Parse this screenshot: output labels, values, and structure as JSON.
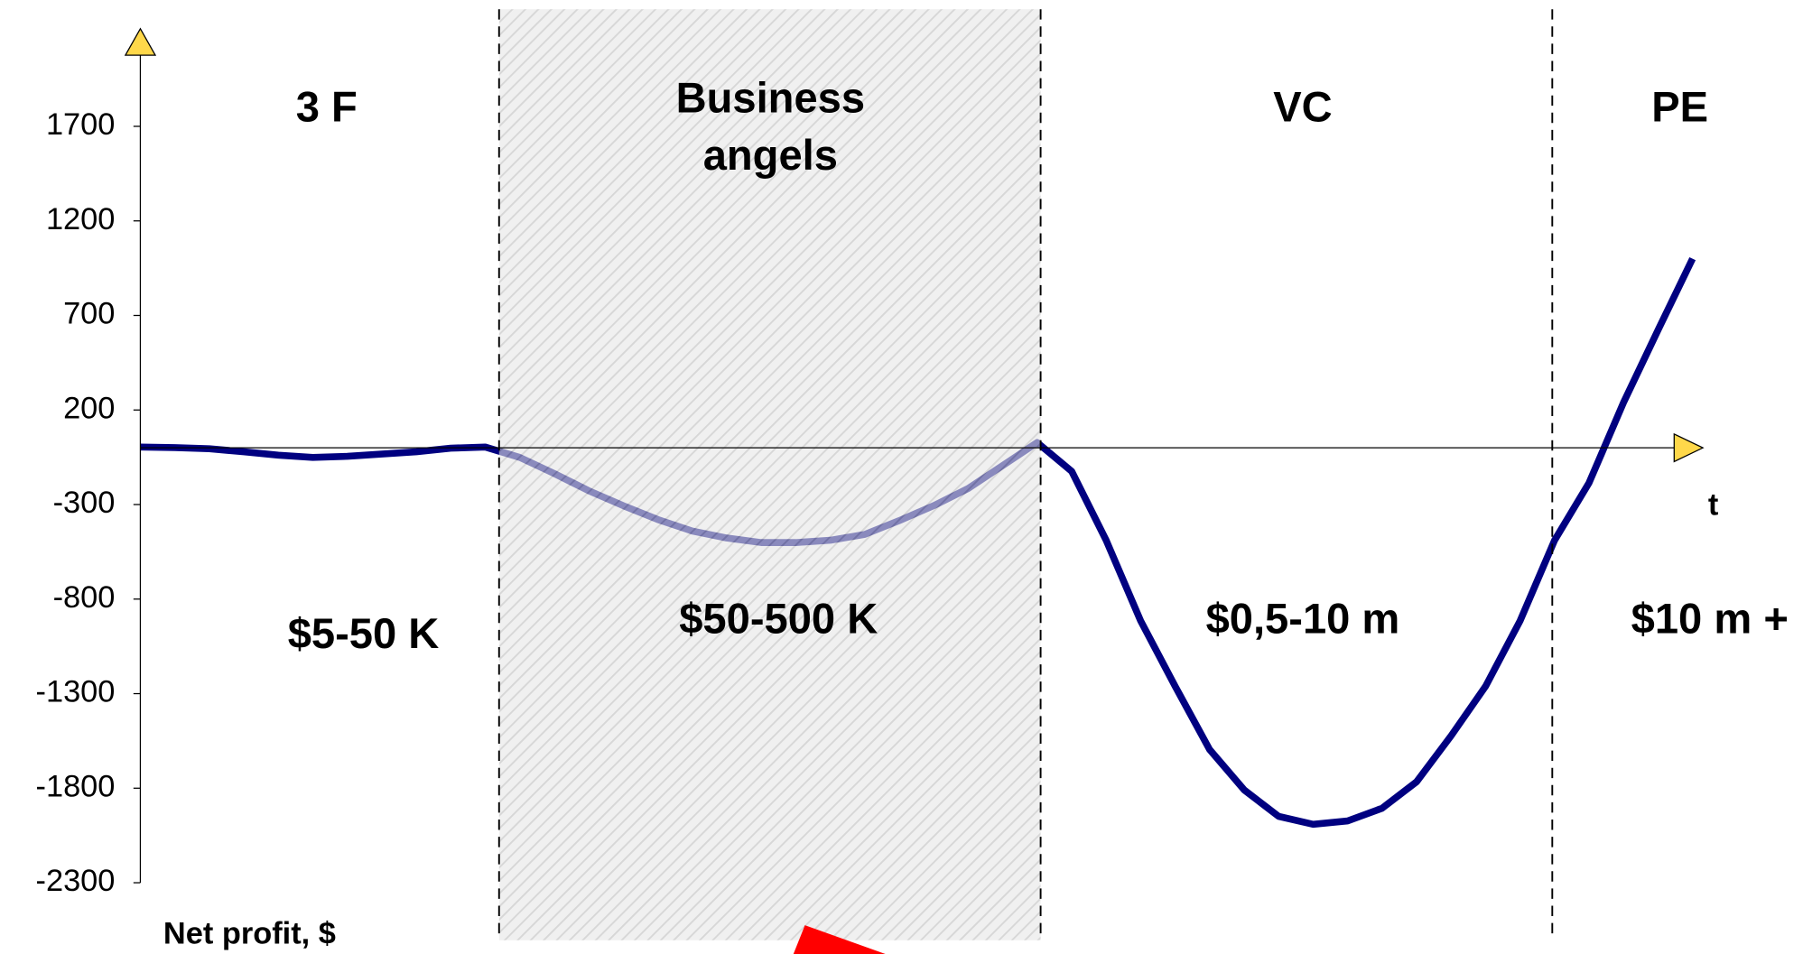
{
  "chart_data": {
    "type": "line",
    "y_label": "Net profit, $",
    "x_label": "t",
    "stages": [
      {
        "name": [
          "3 F"
        ],
        "range": "$5-50 K"
      },
      {
        "name": [
          "Business",
          "angels"
        ],
        "range": "$50-500 K"
      },
      {
        "name": [
          "VC"
        ],
        "range": "$0,5-10 m"
      },
      {
        "name": [
          "PE"
        ],
        "range": "$10 m +"
      }
    ],
    "series": [
      {
        "color": "#000080",
        "values": [
          4,
          1,
          -5,
          -21,
          -39,
          -51,
          -45,
          -33,
          -21,
          -2,
          4,
          -51,
          -136,
          -227,
          -306,
          -379,
          -440,
          -477,
          -501,
          -501,
          -489,
          -458,
          -385,
          -306,
          -215,
          -94,
          28,
          -124,
          -489,
          -915,
          -1261,
          -1596,
          -1809,
          -1949,
          -1991,
          -1973,
          -1906,
          -1766,
          -1523,
          -1261,
          -915,
          -489,
          -185,
          240,
          623,
          1000
        ]
      }
    ],
    "ylim": [
      -2300,
      2125
    ],
    "yticks": [
      1700,
      1200,
      700,
      200,
      -300,
      -800,
      -1300,
      -1800,
      -2300
    ]
  }
}
